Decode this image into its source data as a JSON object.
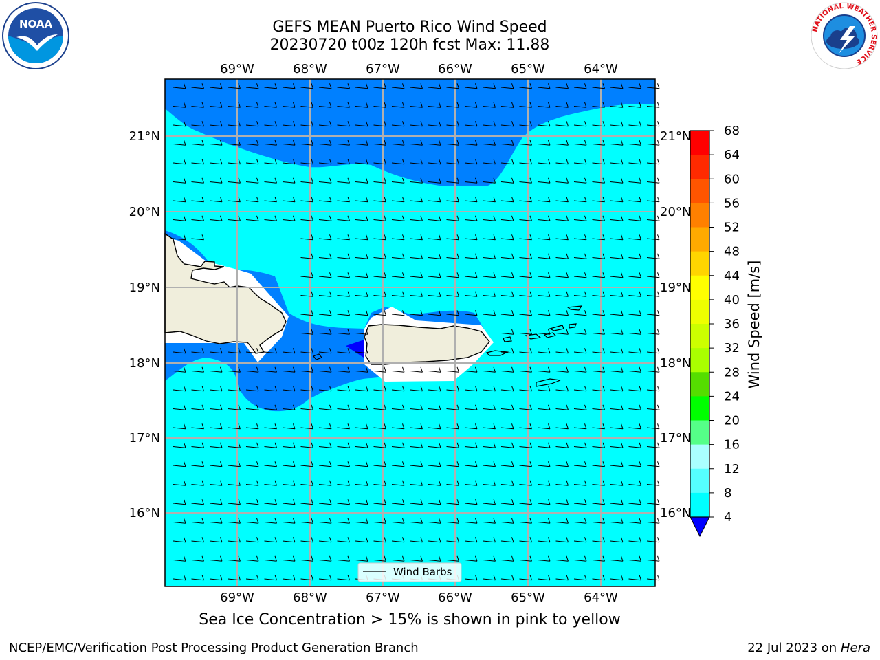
{
  "title": {
    "line1": "GEFS MEAN Puerto Rico Wind Speed",
    "line2": "20230720 t00z 120h fcst   Max: 11.88"
  },
  "logos": {
    "left": "noaa-logo",
    "right": "nws-logo",
    "nws_ring_text": "NATIONAL WEATHER SERVICE"
  },
  "map": {
    "lon_labels": [
      "69°W",
      "68°W",
      "67°W",
      "66°W",
      "65°W",
      "64°W"
    ],
    "lat_labels": [
      "21°N",
      "20°N",
      "19°N",
      "18°N",
      "17°N",
      "16°N"
    ],
    "legend_label": "Wind Barbs",
    "colors": {
      "band_8_12": "#00ffff",
      "band_4_8": "#0080ff",
      "below_4": "#0000ff",
      "land": "#f0eedc"
    }
  },
  "colorbar": {
    "label": "Wind Speed [m/s]",
    "ticks": [
      "68",
      "64",
      "60",
      "56",
      "52",
      "48",
      "44",
      "40",
      "36",
      "32",
      "28",
      "24",
      "20",
      "16",
      "12",
      "8",
      "4"
    ],
    "colors": [
      "#ff0000",
      "#ff2a00",
      "#ff5500",
      "#ff8000",
      "#ffaa00",
      "#ffd500",
      "#ffff00",
      "#eeff00",
      "#ccff00",
      "#aaff00",
      "#55dd00",
      "#00ff00",
      "#55ff88",
      "#aaffff",
      "#55ffff",
      "#00ffff",
      "#0080ff"
    ],
    "extend_color": "#0000ff"
  },
  "subtitle": "Sea Ice Concentration > 15% is shown in pink to yellow",
  "footer": {
    "left": "NCEP/EMC/Verification Post Processing Product Generation Branch",
    "date": "22 Jul 2023 on ",
    "host": "Hera"
  }
}
